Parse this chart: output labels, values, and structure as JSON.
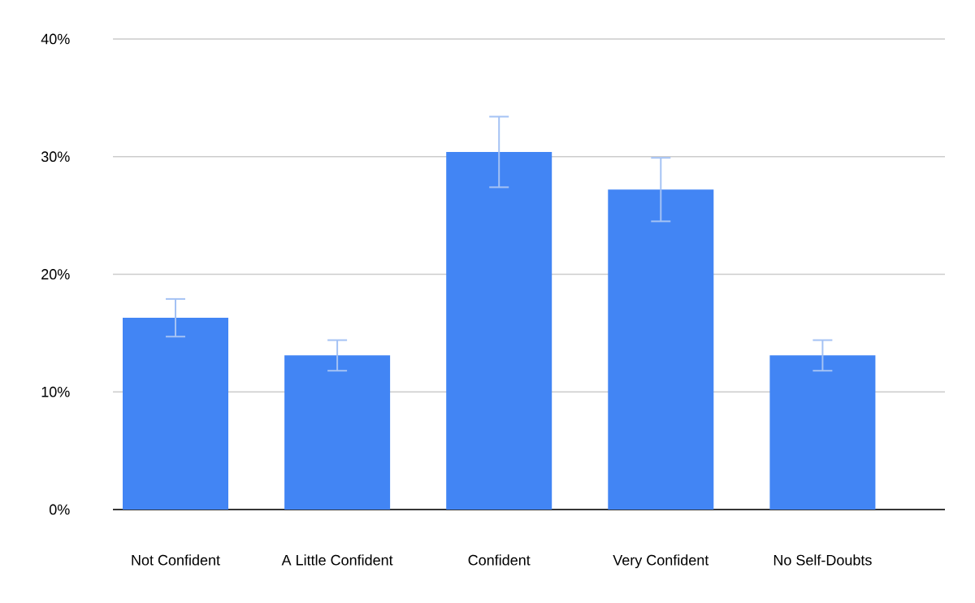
{
  "chart_data": {
    "type": "bar",
    "categories": [
      "Not Confident",
      "A Little Confident",
      "Confident",
      "Very Confident",
      "No Self-Doubts"
    ],
    "values": [
      16.3,
      13.1,
      30.4,
      27.2,
      13.1
    ],
    "errors": [
      1.6,
      1.3,
      3.0,
      2.7,
      1.3
    ],
    "color": "#4285f4",
    "ylim": [
      0,
      40
    ],
    "yticks": [
      {
        "value": 0,
        "label": "0%"
      },
      {
        "value": 10,
        "label": "10%"
      },
      {
        "value": 20,
        "label": "20%"
      },
      {
        "value": 30,
        "label": "30%"
      },
      {
        "value": 40,
        "label": "40%"
      }
    ],
    "grid": "y"
  }
}
